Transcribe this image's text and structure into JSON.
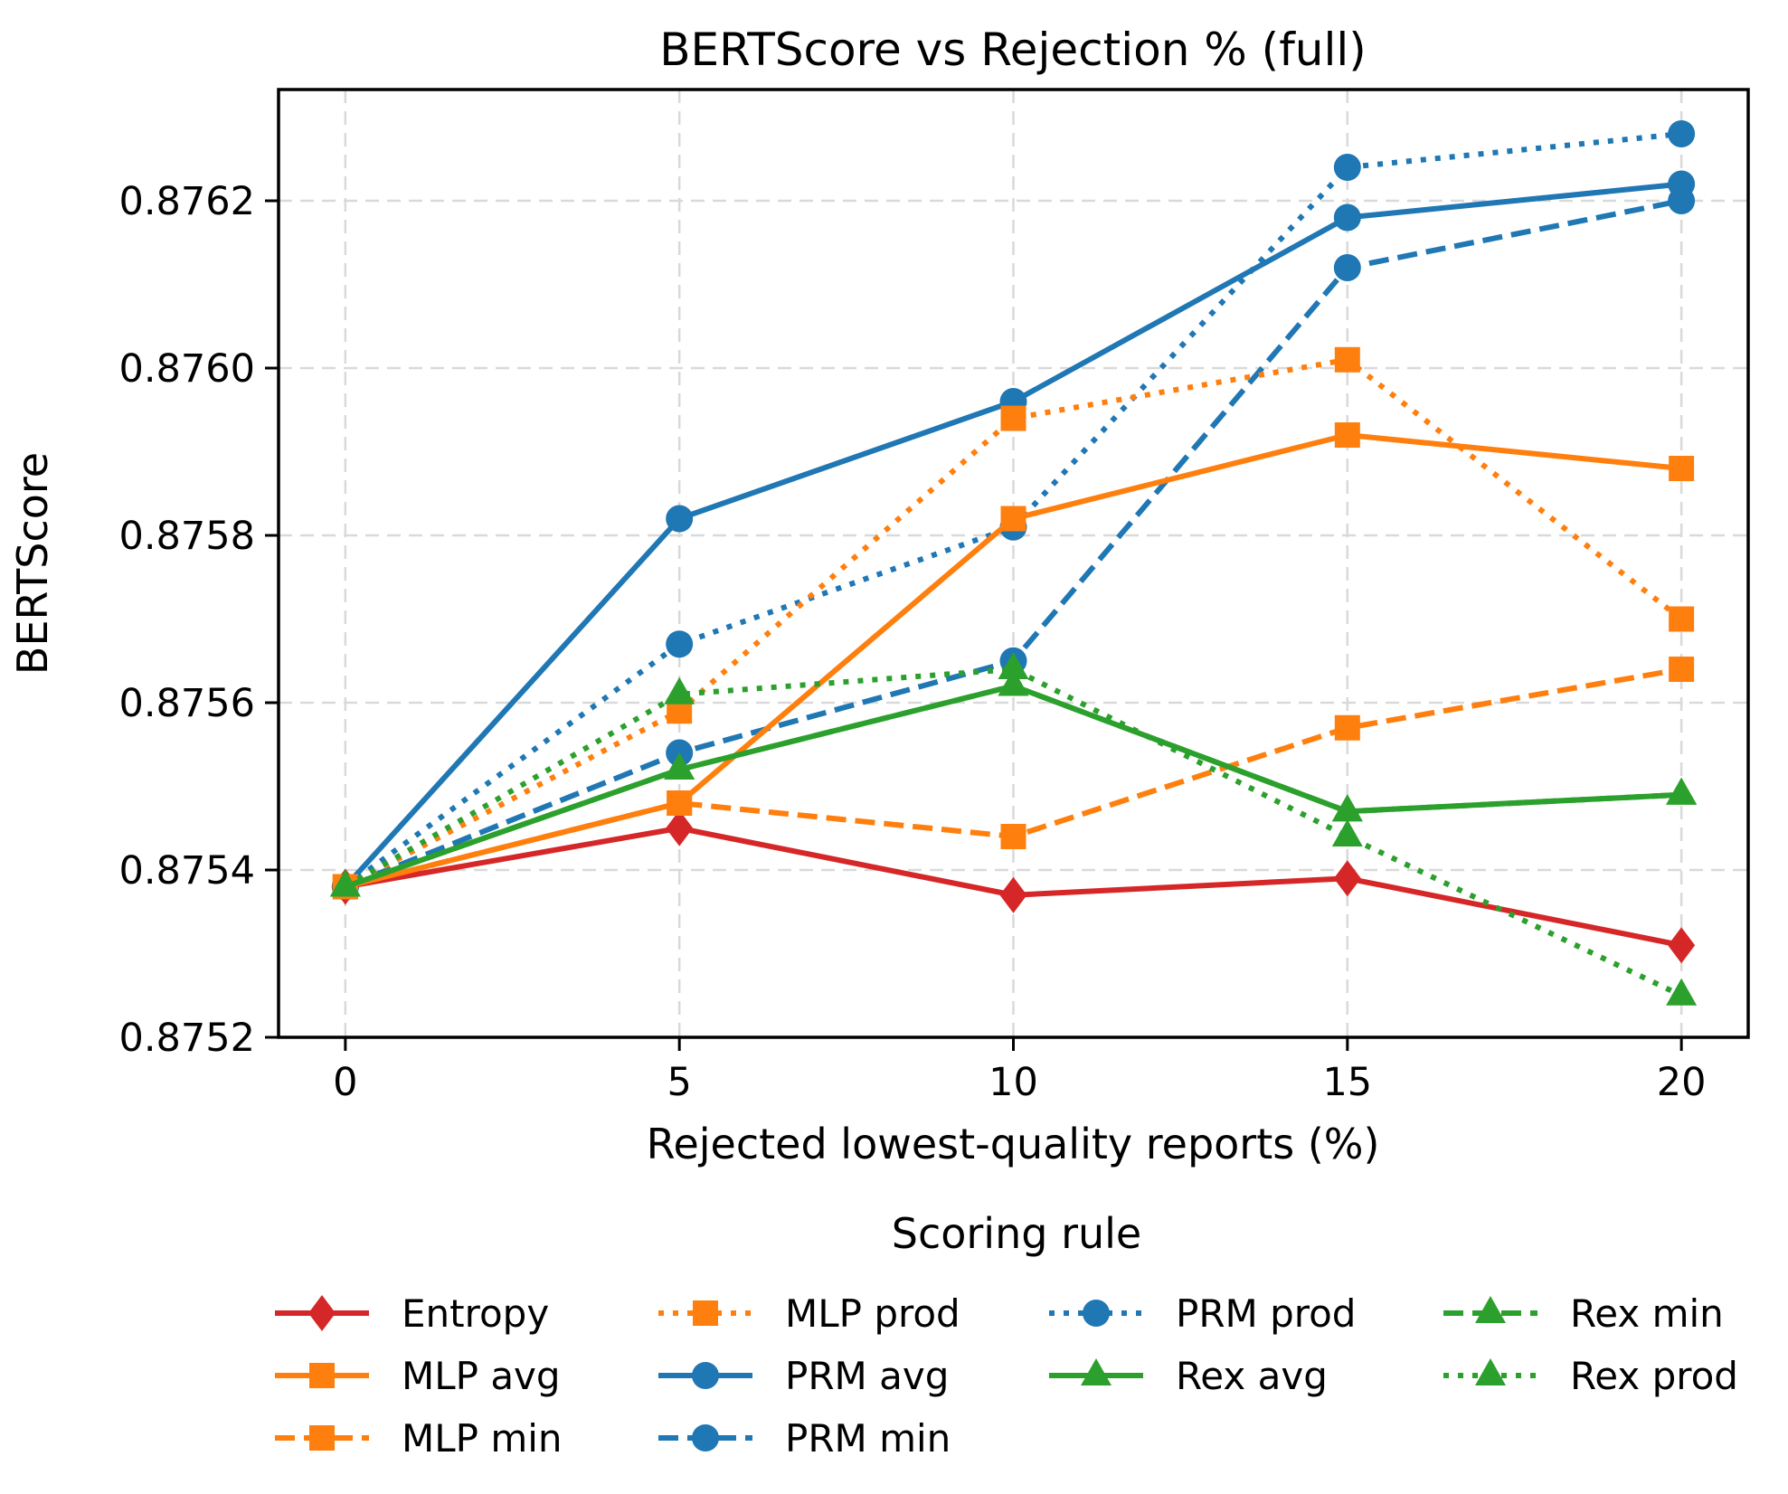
{
  "chart_data": {
    "type": "line",
    "title": "BERTScore vs Rejection % (full)",
    "xlabel": "Rejected lowest-quality reports (%)",
    "ylabel": "BERTScore",
    "legend_title": "Scoring rule",
    "x": [
      0,
      5,
      10,
      15,
      20
    ],
    "xticks": [
      0,
      5,
      10,
      15,
      20
    ],
    "yticks": [
      0.8752,
      0.8754,
      0.8756,
      0.8758,
      0.876,
      0.8762
    ],
    "xlim": [
      -1.0,
      21.0
    ],
    "ylim": [
      0.8752,
      0.876333
    ],
    "grid": true,
    "grid_color": "#d9d9d9",
    "legend_position": "bottom",
    "series": [
      {
        "name": "PRM avg",
        "color": "#1f77b4",
        "linestyle": "solid",
        "marker": "circle",
        "values": [
          0.87538,
          0.87582,
          0.87596,
          0.87618,
          0.87622
        ]
      },
      {
        "name": "PRM min",
        "color": "#1f77b4",
        "linestyle": "dashed",
        "marker": "circle",
        "values": [
          0.87538,
          0.87554,
          0.87565,
          0.87612,
          0.8762
        ]
      },
      {
        "name": "PRM prod",
        "color": "#1f77b4",
        "linestyle": "dotted",
        "marker": "circle",
        "values": [
          0.87538,
          0.87567,
          0.87581,
          0.87624,
          0.87628
        ]
      },
      {
        "name": "Entropy",
        "color": "#d62728",
        "linestyle": "solid",
        "marker": "diamond",
        "values": [
          0.87538,
          0.87545,
          0.87537,
          0.87539,
          0.87531
        ]
      },
      {
        "name": "MLP avg",
        "color": "#ff7f0e",
        "linestyle": "solid",
        "marker": "square",
        "values": [
          0.87538,
          0.87548,
          0.87582,
          0.87592,
          0.87588
        ]
      },
      {
        "name": "MLP min",
        "color": "#ff7f0e",
        "linestyle": "dashed",
        "marker": "square",
        "values": [
          0.87538,
          0.87548,
          0.87544,
          0.87557,
          0.87564
        ]
      },
      {
        "name": "MLP prod",
        "color": "#ff7f0e",
        "linestyle": "dotted",
        "marker": "square",
        "values": [
          0.87538,
          0.87559,
          0.87594,
          0.87601,
          0.8757
        ]
      },
      {
        "name": "Rex avg",
        "color": "#2ca02c",
        "linestyle": "solid",
        "marker": "triangle",
        "values": [
          0.87538,
          0.87552,
          0.87562,
          0.87547,
          0.87549
        ]
      },
      {
        "name": "Rex min",
        "color": "#2ca02c",
        "linestyle": "dashed",
        "marker": "triangle",
        "values": [
          0.87538,
          0.87552,
          0.87562,
          0.87547,
          0.87549
        ]
      },
      {
        "name": "Rex prod",
        "color": "#2ca02c",
        "linestyle": "dotted",
        "marker": "triangle",
        "values": [
          0.87538,
          0.87561,
          0.87564,
          0.87544,
          0.87525
        ]
      }
    ],
    "legend_columns": [
      [
        "Entropy",
        "MLP avg",
        "MLP min"
      ],
      [
        "MLP prod",
        "PRM avg",
        "PRM min"
      ],
      [
        "PRM prod",
        "Rex avg"
      ],
      [
        "Rex min",
        "Rex prod"
      ]
    ]
  }
}
